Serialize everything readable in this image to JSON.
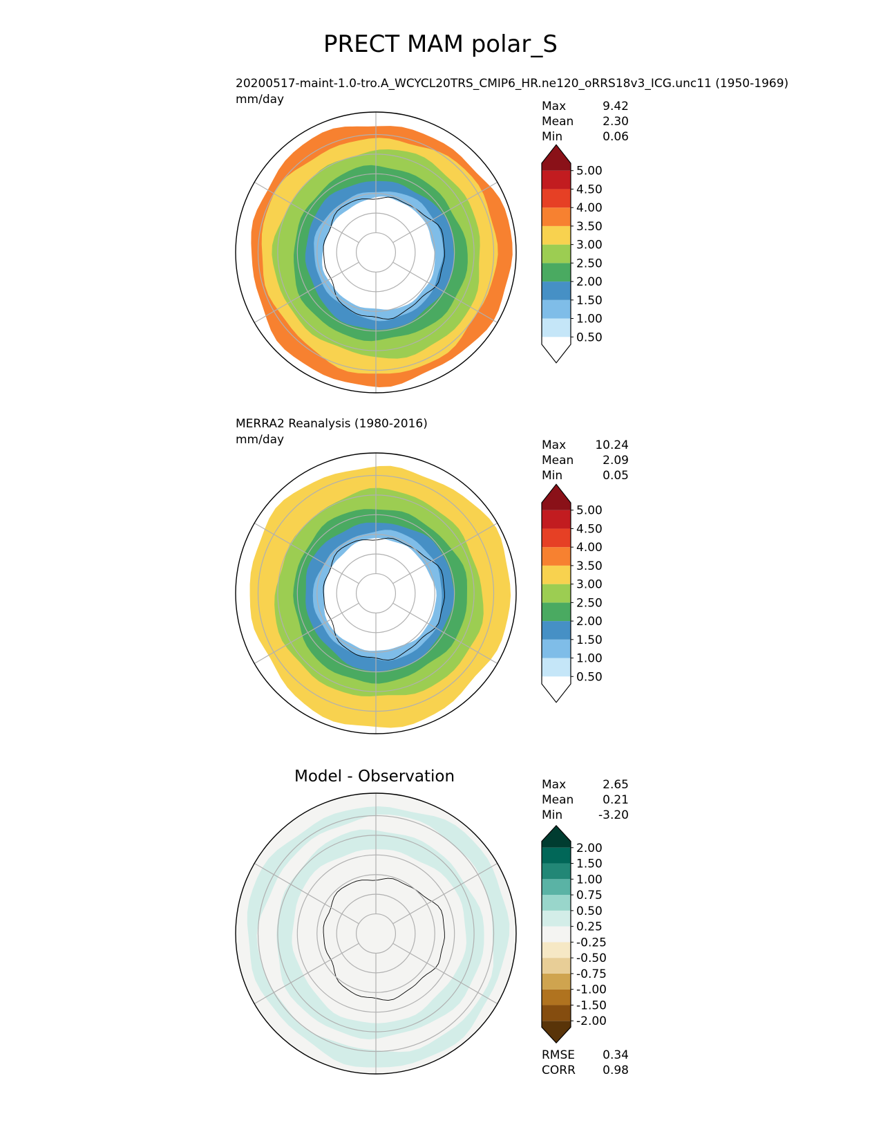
{
  "title": "PRECT MAM polar_S",
  "colors": {
    "precip": [
      "#ffffff",
      "#c5e6f8",
      "#7fbde8",
      "#4690c5",
      "#4aaa61",
      "#9ccd52",
      "#f8d24f",
      "#f78130",
      "#e64025",
      "#c21c20",
      "#8a1118"
    ],
    "diff": [
      "#593409",
      "#854d0f",
      "#b0731f",
      "#cfa44f",
      "#e8ce97",
      "#f6e8c5",
      "#f4f4f2",
      "#d3ede8",
      "#99d6cb",
      "#5ab3a5",
      "#228776",
      "#016758",
      "#003c30"
    ]
  },
  "chart_data": [
    {
      "type": "heatmap",
      "projection": "south polar stereographic",
      "title": "20200517-maint-1.0-tro.A_WCYCL20TRS_CMIP6_HR.ne120_oRRS18v3_ICG.unc11 (1950-1969)",
      "units": "mm/day",
      "stats": [
        {
          "label": "Max",
          "value": "9.42"
        },
        {
          "label": "Mean",
          "value": "2.30"
        },
        {
          "label": "Min",
          "value": "0.06"
        }
      ],
      "colorbar_levels": [
        "0.50",
        "1.00",
        "1.50",
        "2.00",
        "2.50",
        "3.00",
        "3.50",
        "4.00",
        "4.50",
        "5.00"
      ],
      "rings": [
        {
          "level": 0,
          "key": "o"
        },
        {
          "level": 7,
          "key": "m1"
        },
        {
          "level": 6,
          "key": "m2"
        },
        {
          "level": 5,
          "key": "m3"
        },
        {
          "level": 4,
          "key": "m4"
        },
        {
          "level": 3,
          "key": "m5"
        },
        {
          "level": 2,
          "key": "ice"
        },
        {
          "level": 0,
          "key": "in"
        }
      ]
    },
    {
      "type": "heatmap",
      "projection": "south polar stereographic",
      "title": "MERRA2 Reanalysis (1980-2016)",
      "units": "mm/day",
      "stats": [
        {
          "label": "Max",
          "value": "10.24"
        },
        {
          "label": "Mean",
          "value": "2.09"
        },
        {
          "label": "Min",
          "value": "0.05"
        }
      ],
      "colorbar_levels": [
        "0.50",
        "1.00",
        "1.50",
        "2.00",
        "2.50",
        "3.00",
        "3.50",
        "4.00",
        "4.50",
        "5.00"
      ],
      "rings": [
        {
          "level": 0,
          "key": "o"
        },
        {
          "level": 6,
          "key": "m1"
        },
        {
          "level": 6,
          "key": "m2"
        },
        {
          "level": 5,
          "key": "m3"
        },
        {
          "level": 4,
          "key": "m4"
        },
        {
          "level": 3,
          "key": "m5"
        },
        {
          "level": 2,
          "key": "ice"
        },
        {
          "level": 0,
          "key": "in"
        }
      ]
    },
    {
      "type": "heatmap",
      "projection": "south polar stereographic",
      "title": "Model - Observation",
      "units": "",
      "stats": [
        {
          "label": "Max",
          "value": "2.65"
        },
        {
          "label": "Mean",
          "value": "0.21"
        },
        {
          "label": "Min",
          "value": "-3.20"
        }
      ],
      "colorbar_levels": [
        "-2.00",
        "-1.50",
        "-1.00",
        "-0.75",
        "-0.50",
        "-0.25",
        "0.25",
        "0.50",
        "0.75",
        "1.00",
        "1.50",
        "2.00"
      ],
      "metrics": [
        {
          "label": "RMSE",
          "value": "0.34"
        },
        {
          "label": "CORR",
          "value": "0.98"
        }
      ],
      "rings": [
        {
          "level": 6,
          "key": "o"
        },
        {
          "level": 7,
          "key": "m1"
        },
        {
          "level": 6,
          "key": "m2"
        },
        {
          "level": 7,
          "key": "m3"
        },
        {
          "level": 6,
          "key": "m4"
        },
        {
          "level": 6,
          "key": "m5"
        },
        {
          "level": 6,
          "key": "ice"
        },
        {
          "level": 6,
          "key": "in"
        }
      ]
    }
  ]
}
